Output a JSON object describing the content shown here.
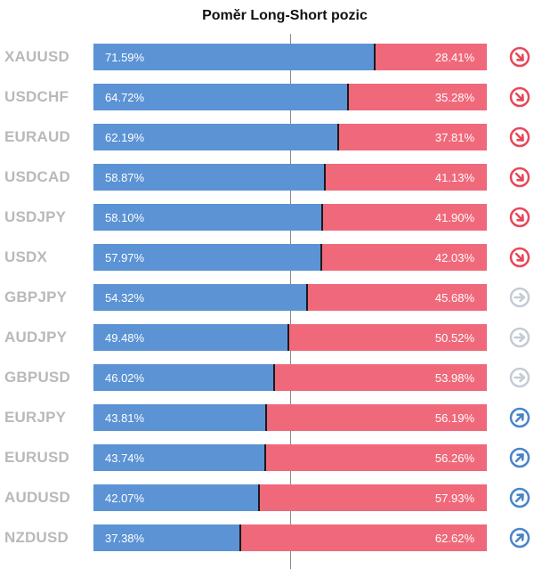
{
  "chart_data": {
    "type": "bar",
    "title": "Poměr Long-Short pozic",
    "categories": [
      "XAUUSD",
      "USDCHF",
      "EURAUD",
      "USDCAD",
      "USDJPY",
      "USDX",
      "GBPJPY",
      "AUDJPY",
      "GBPUSD",
      "EURJPY",
      "EURUSD",
      "AUDUSD",
      "NZDUSD"
    ],
    "series": [
      {
        "values": [
          71.59,
          64.72,
          62.19,
          58.87,
          58.1,
          57.97,
          54.32,
          49.48,
          46.02,
          43.81,
          43.74,
          42.07,
          37.38
        ]
      },
      {
        "values": [
          28.41,
          35.28,
          37.81,
          41.13,
          41.9,
          42.03,
          45.68,
          50.52,
          53.98,
          56.19,
          56.26,
          57.93,
          62.62
        ]
      }
    ],
    "long_labels": [
      "71.59%",
      "64.72%",
      "62.19%",
      "58.87%",
      "58.10%",
      "57.97%",
      "54.32%",
      "49.48%",
      "46.02%",
      "43.81%",
      "43.74%",
      "42.07%",
      "37.38%"
    ],
    "short_labels": [
      "28.41%",
      "35.28%",
      "37.81%",
      "41.13%",
      "41.90%",
      "42.03%",
      "45.68%",
      "50.52%",
      "53.98%",
      "56.19%",
      "56.26%",
      "57.93%",
      "62.62%"
    ],
    "signals": [
      "down",
      "down",
      "down",
      "down",
      "down",
      "down",
      "neutral",
      "neutral",
      "neutral",
      "up",
      "up",
      "up",
      "up"
    ],
    "xlim": [
      0,
      100
    ],
    "colors": {
      "long": "#5b93d5",
      "short": "#f0697a",
      "down": "#e8475a",
      "neutral": "#c5cbd6",
      "up": "#4a84cc",
      "label": "#b9b9b9"
    }
  }
}
